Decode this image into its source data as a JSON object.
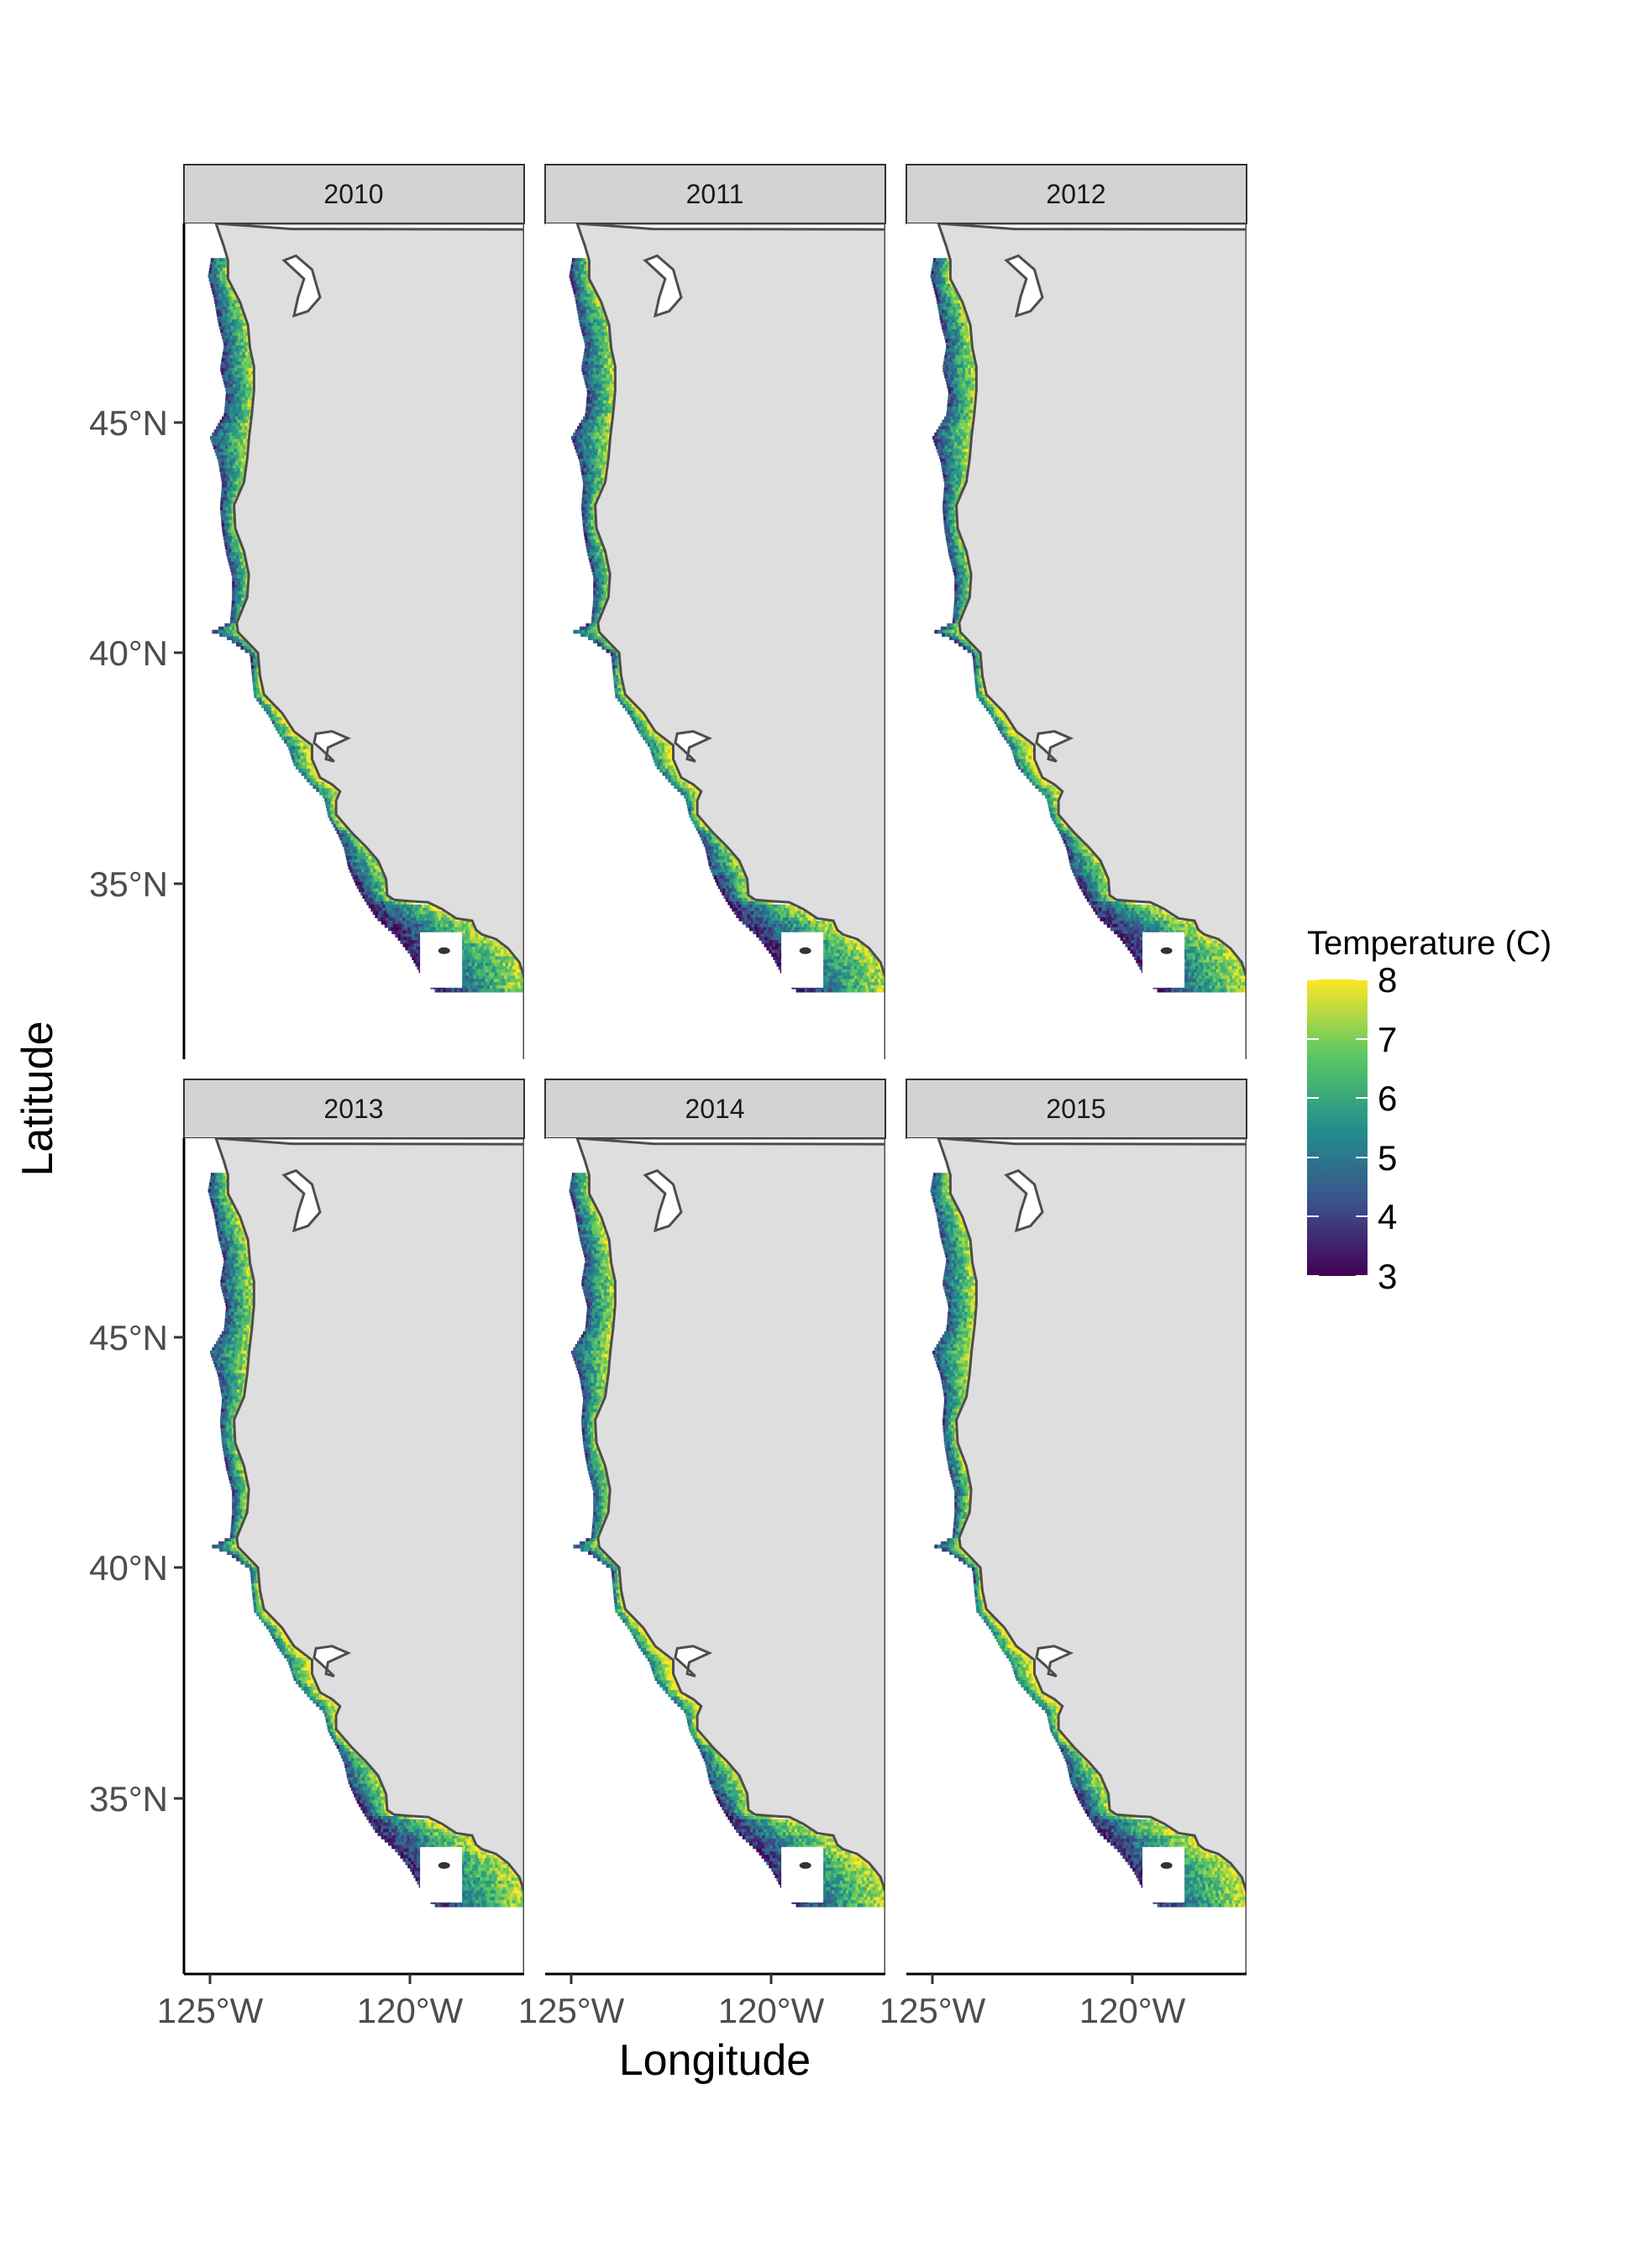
{
  "panels": [
    {
      "label": "2010"
    },
    {
      "label": "2011"
    },
    {
      "label": "2012"
    },
    {
      "label": "2013"
    },
    {
      "label": "2014"
    },
    {
      "label": "2015"
    }
  ],
  "axes": {
    "x_title": "Longitude",
    "y_title": "Latitude",
    "x_ticks": [
      "125°W",
      "120°W"
    ],
    "y_ticks": [
      "45°N",
      "40°N",
      "35°N"
    ],
    "lon_range": [
      -125.7,
      -117.2
    ],
    "lat_range": [
      31.0,
      49.1
    ]
  },
  "legend": {
    "title": "Temperature (C)",
    "labels": [
      "8",
      "7",
      "6",
      "5",
      "4",
      "3"
    ],
    "range": [
      3,
      8
    ]
  },
  "colors": {
    "land": "#dedede",
    "coast": "#4d4d4d",
    "strip_fill": "#d3d3d3",
    "viridis": [
      "#440154",
      "#3b528b",
      "#21908c",
      "#5dc863",
      "#fde725"
    ]
  }
}
